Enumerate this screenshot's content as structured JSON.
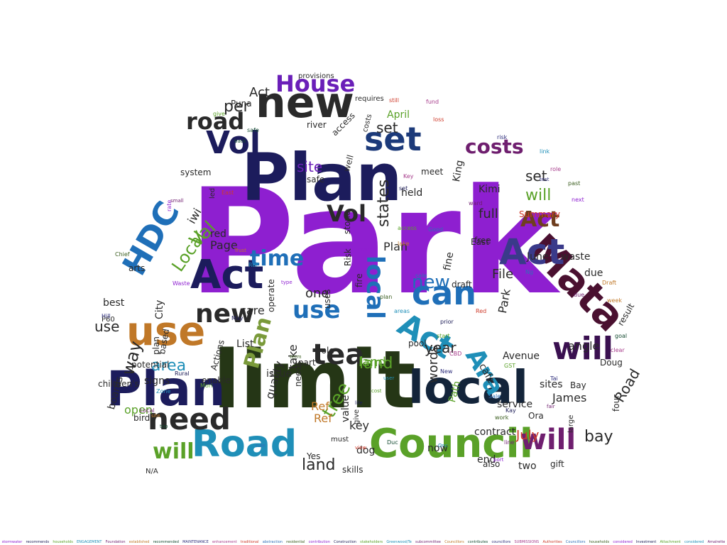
{
  "palette": [
    "#8e1fd0",
    "#1a1a55",
    "#5aa128",
    "#1f8fb8",
    "#6f1f6f",
    "#c07828",
    "#134a30",
    "#2b2b7a",
    "#a63a8a",
    "#ce3a2a",
    "#2e6fb8",
    "#3a5d1e"
  ],
  "cloud_words": [
    {
      "text": "Park",
      "color": "#8e1fd0"
    },
    {
      "text": "limit",
      "color": "#253616"
    },
    {
      "text": "Plan",
      "color": "#1c1c5c"
    },
    {
      "text": "Plan",
      "color": "#1c1c5c"
    },
    {
      "text": "new",
      "color": "#2a2a2a"
    },
    {
      "text": "Council",
      "color": "#5aa128"
    },
    {
      "text": "local",
      "color": "#13243a"
    },
    {
      "text": "Mata",
      "color": "#4a1030"
    },
    {
      "text": "use",
      "color": "#c07828"
    },
    {
      "text": "Road",
      "color": "#1f8fb8"
    },
    {
      "text": "Act",
      "color": "#1c1c5c"
    },
    {
      "text": "can",
      "color": "#1f6fb8"
    },
    {
      "text": "Vol",
      "color": "#1c1c5c"
    },
    {
      "text": "will",
      "color": "#3a1050"
    },
    {
      "text": "House",
      "color": "#6a1fb8"
    },
    {
      "text": "need",
      "color": "#2a2a2a"
    },
    {
      "text": "tea",
      "color": "#2a2a2a"
    },
    {
      "text": "set",
      "color": "#1c3a7a"
    },
    {
      "text": "new",
      "color": "#2a2a2a"
    },
    {
      "text": "Act",
      "color": "#1f8fb8"
    },
    {
      "text": "HDC",
      "color": "#1f6fb8"
    },
    {
      "text": "time",
      "color": "#1f6fb8"
    },
    {
      "text": "local",
      "color": "#1f6fb8"
    },
    {
      "text": "Ara",
      "color": "#1f8fb8"
    },
    {
      "text": "Act",
      "color": "#3a3a8a"
    },
    {
      "text": "road",
      "color": "#2a2a2a"
    },
    {
      "text": "costs",
      "color": "#6f1f6f"
    },
    {
      "text": "Act",
      "color": "#6f3f1f"
    },
    {
      "text": "will",
      "color": "#6f1f6f"
    },
    {
      "text": "will",
      "color": "#5aa128"
    },
    {
      "text": "Vol",
      "color": "#2a2a2a"
    },
    {
      "text": "use",
      "color": "#1f6fb8"
    },
    {
      "text": "area",
      "color": "#1f8fb8"
    },
    {
      "text": "Plan",
      "color": "#7a9a3a"
    },
    {
      "text": "land",
      "color": "#5aa128"
    },
    {
      "text": "new",
      "color": "#1f6fb8"
    },
    {
      "text": "Val",
      "color": "#5aa128"
    },
    {
      "text": "Local",
      "color": "#5aa128"
    },
    {
      "text": "tree",
      "color": "#5aa128"
    },
    {
      "text": "per",
      "color": "#2a2a2a"
    },
    {
      "text": "set",
      "color": "#2a2a2a"
    },
    {
      "text": "land",
      "color": "#2a2a2a"
    },
    {
      "text": "site",
      "color": "#6a1fb8"
    },
    {
      "text": "states",
      "color": "#2a2a2a"
    },
    {
      "text": "Act",
      "color": "#2a2a2a"
    },
    {
      "text": "way",
      "color": "#2a2a2a"
    },
    {
      "text": "year",
      "color": "#2a2a2a"
    },
    {
      "text": "bay",
      "color": "#2a2a2a"
    },
    {
      "text": "Road",
      "color": "#2a2a2a"
    },
    {
      "text": "land",
      "color": "#5aa128"
    },
    {
      "text": "full",
      "color": "#2a2a2a"
    },
    {
      "text": "set",
      "color": "#2a2a2a"
    },
    {
      "text": "will",
      "color": "#5aa128"
    },
    {
      "text": "one",
      "color": "#2a2a2a"
    },
    {
      "text": "use",
      "color": "#2a2a2a"
    },
    {
      "text": "Plan",
      "color": "#2a2a2a"
    },
    {
      "text": "words",
      "color": "#2a2a2a"
    },
    {
      "text": "take",
      "color": "#2a2a2a"
    },
    {
      "text": "quality",
      "color": "#2a2a2a"
    },
    {
      "text": "key",
      "color": "#2a2a2a"
    },
    {
      "text": "Path",
      "color": "#5aa128"
    },
    {
      "text": "File",
      "color": "#2a2a2a"
    },
    {
      "text": "Page",
      "color": "#2a2a2a"
    },
    {
      "text": "Ref",
      "color": "#c07828"
    },
    {
      "text": "Ref",
      "color": "#c07828"
    },
    {
      "text": "value",
      "color": "#2a2a2a"
    },
    {
      "text": "Summary",
      "color": "#ce3a2a"
    },
    {
      "text": "June",
      "color": "#2a2a2a"
    },
    {
      "text": "July",
      "color": "#ce3a2a"
    },
    {
      "text": "Park",
      "color": "#2a2a2a"
    },
    {
      "text": "Avenue",
      "color": "#2a2a2a"
    },
    {
      "text": "Kimi",
      "color": "#2a2a2a"
    },
    {
      "text": "King",
      "color": "#2a2a2a"
    },
    {
      "text": "James",
      "color": "#2a2a2a"
    },
    {
      "text": "sites",
      "color": "#2a2a2a"
    },
    {
      "text": "contract",
      "color": "#2a2a2a"
    },
    {
      "text": "service",
      "color": "#2a2a2a"
    },
    {
      "text": "open",
      "color": "#5aa128"
    },
    {
      "text": "care",
      "color": "#2a2a2a"
    },
    {
      "text": "iwi",
      "color": "#2a2a2a"
    },
    {
      "text": "angle",
      "color": "#2a2a2a"
    },
    {
      "text": "plan",
      "color": "#2a2a2a"
    },
    {
      "text": "enable",
      "color": "#2a2a2a"
    },
    {
      "text": "due",
      "color": "#2a2a2a"
    },
    {
      "text": "two",
      "color": "#2a2a2a"
    },
    {
      "text": "now",
      "color": "#2a2a2a"
    },
    {
      "text": "end",
      "color": "#2a2a2a"
    },
    {
      "text": "held",
      "color": "#2a2a2a"
    },
    {
      "text": "red",
      "color": "#2a2a2a"
    },
    {
      "text": "Yes",
      "color": "#2a2a2a"
    },
    {
      "text": "dog",
      "color": "#2a2a2a"
    },
    {
      "text": "Ora",
      "color": "#2a2a2a"
    },
    {
      "text": "cafe",
      "color": "#2a2a2a"
    },
    {
      "text": "April",
      "color": "#5aa128"
    },
    {
      "text": "free",
      "color": "#2a2a2a"
    },
    {
      "text": "draft",
      "color": "#2a2a2a"
    },
    {
      "text": "birds",
      "color": "#2a2a2a"
    },
    {
      "text": "signs",
      "color": "#2a2a2a"
    },
    {
      "text": "City",
      "color": "#2a2a2a"
    },
    {
      "text": "waste",
      "color": "#2a2a2a"
    },
    {
      "text": "Bay",
      "color": "#2a2a2a"
    },
    {
      "text": "four",
      "color": "#2a2a2a"
    },
    {
      "text": "result",
      "color": "#2a2a2a"
    },
    {
      "text": "Doug",
      "color": "#2a2a2a"
    },
    {
      "text": "gift",
      "color": "#2a2a2a"
    },
    {
      "text": "large",
      "color": "#2a2a2a"
    },
    {
      "text": "potential",
      "color": "#2a2a2a"
    },
    {
      "text": "boards",
      "color": "#2a2a2a"
    },
    {
      "text": "children's",
      "color": "#2a2a2a"
    },
    {
      "text": "best",
      "color": "#2a2a2a"
    },
    {
      "text": "N/A",
      "color": "#2a2a2a"
    },
    {
      "text": "Puna",
      "color": "#2a2a2a"
    },
    {
      "text": "safe",
      "color": "#2a2a2a"
    },
    {
      "text": "river",
      "color": "#2a2a2a"
    },
    {
      "text": "access",
      "color": "#2a2a2a"
    },
    {
      "text": "meet",
      "color": "#2a2a2a"
    },
    {
      "text": "give",
      "color": "#2a2a2a"
    },
    {
      "text": "skills",
      "color": "#2a2a2a"
    },
    {
      "text": "pool",
      "color": "#2a2a2a"
    },
    {
      "text": "role",
      "color": "#2a2a2a"
    },
    {
      "text": "also",
      "color": "#2a2a2a"
    },
    {
      "text": "well",
      "color": "#2a2a2a"
    },
    {
      "text": "Risk",
      "color": "#2a2a2a"
    },
    {
      "text": "fire",
      "color": "#2a2a2a"
    },
    {
      "text": "uses",
      "color": "#2a2a2a"
    },
    {
      "text": "stone",
      "color": "#2a2a2a"
    },
    {
      "text": "operate",
      "color": "#2a2a2a"
    },
    {
      "text": "part",
      "color": "#2a2a2a"
    },
    {
      "text": "must",
      "color": "#2a2a2a"
    },
    {
      "text": "issue",
      "color": "#2a2a2a"
    },
    {
      "text": "List",
      "color": "#2a2a2a"
    },
    {
      "text": "led",
      "color": "#2a2a2a"
    },
    {
      "text": "needs",
      "color": "#2a2a2a"
    },
    {
      "text": "provisions",
      "color": "#2a2a2a"
    },
    {
      "text": "requires",
      "color": "#2a2a2a"
    },
    {
      "text": "costs",
      "color": "#2a2a2a"
    },
    {
      "text": "fine",
      "color": "#2a2a2a"
    },
    {
      "text": "based",
      "color": "#2a2a2a"
    },
    {
      "text": "Actions",
      "color": "#2a2a2a"
    },
    {
      "text": "system",
      "color": "#2a2a2a"
    },
    {
      "text": "arts",
      "color": "#2a2a2a"
    },
    {
      "text": "East",
      "color": "#2a2a2a"
    },
    {
      "text": "P60",
      "color": "#2a2a2a"
    },
    {
      "text": "Hill",
      "color": "#2a2a2a"
    }
  ],
  "tiny_words": [
    "rate",
    "May",
    "give",
    "Ref",
    "small",
    "Trust",
    "back",
    "Hill",
    "Key",
    "East",
    "sale",
    "plan",
    "costs",
    "set",
    "access",
    "areas",
    "ward",
    "lake",
    "Duc",
    "New",
    "CBD",
    "Red",
    "Sale",
    "work",
    "port",
    "Kay",
    "GST",
    "Onc",
    "line",
    "week",
    "safe",
    "risk",
    "role",
    "view",
    "Ng",
    "Chief",
    "Waste",
    "Rural",
    "Mori",
    "Zone",
    "Local",
    "site",
    "top",
    "Tai",
    "clear",
    "still",
    "Good",
    "past",
    "next",
    "prior",
    "start",
    "link",
    "due",
    "Draft",
    "goal",
    "test",
    "fund",
    "loss",
    "rule",
    "term",
    "type",
    "life",
    "cost",
    "user",
    "fair"
  ],
  "footer_words": [
    "stormwater",
    "recommends",
    "households",
    "ENGAGEMENT",
    "Foundation",
    "established",
    "recommended",
    "MAINTENANCE",
    "enhancement",
    "traditional",
    "abstraction",
    "residential",
    "contribution",
    "Construction",
    "stakeholders",
    "Greenwood/Te",
    "subcommittee",
    "Councillors",
    "contributes",
    "councillors",
    "SUBMISSIONS",
    "Authorities",
    "Councillors",
    "households",
    "considered",
    "Investment",
    "Attachment",
    "considered",
    "Amalrette"
  ]
}
